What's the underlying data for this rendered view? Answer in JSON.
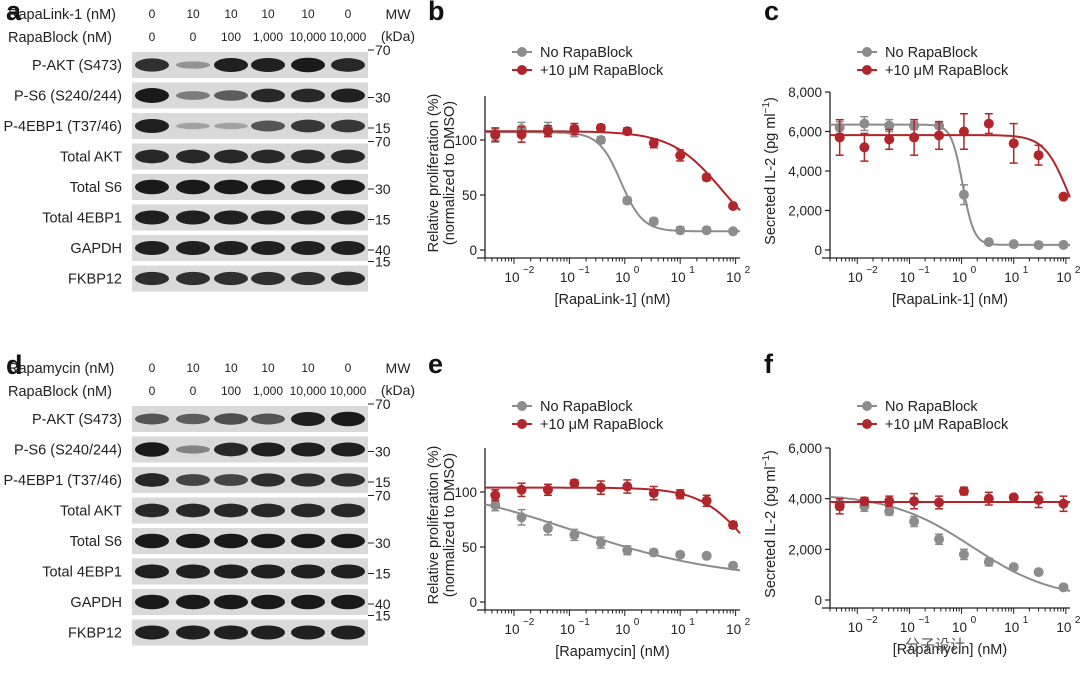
{
  "panels": {
    "a": {
      "letter": "a",
      "conditions": [
        {
          "label": "RapaLink-1 (nM)",
          "values": [
            "0",
            "10",
            "10",
            "10",
            "10",
            "0"
          ]
        },
        {
          "label": "RapaBlock (nM)",
          "values": [
            "0",
            "0",
            "100",
            "1,000",
            "10,000",
            "10,000"
          ]
        }
      ],
      "mw_header": [
        "MW",
        "(kDa)"
      ],
      "blots": [
        {
          "label": "P-AKT (S473)",
          "intensity": [
            0.8,
            0.15,
            0.9,
            0.9,
            0.95,
            0.85
          ],
          "mw": "70"
        },
        {
          "label": "P-S6 (S240/244)",
          "intensity": [
            1.0,
            0.3,
            0.5,
            0.85,
            0.85,
            0.9
          ],
          "mw": "30"
        },
        {
          "label": "P-4EBP1 (T37/46)",
          "intensity": [
            0.9,
            0.05,
            0.05,
            0.55,
            0.75,
            0.75
          ],
          "mw": "15"
        },
        {
          "label": "Total AKT",
          "intensity": [
            0.85,
            0.85,
            0.85,
            0.85,
            0.85,
            0.85
          ],
          "mw": "70"
        },
        {
          "label": "Total S6",
          "intensity": [
            0.95,
            0.95,
            0.95,
            0.95,
            0.95,
            0.95
          ],
          "mw": "30"
        },
        {
          "label": "Total 4EBP1",
          "intensity": [
            0.9,
            0.9,
            0.9,
            0.9,
            0.9,
            0.9
          ],
          "mw": "15"
        },
        {
          "label": "GAPDH",
          "intensity": [
            0.9,
            0.9,
            0.9,
            0.9,
            0.9,
            0.9
          ],
          "mw": "40"
        },
        {
          "label": "FKBP12",
          "intensity": [
            0.8,
            0.8,
            0.8,
            0.8,
            0.8,
            0.85
          ],
          "mw": "15"
        }
      ]
    },
    "d": {
      "letter": "d",
      "conditions": [
        {
          "label": "Rapamycin (nM)",
          "values": [
            "0",
            "10",
            "10",
            "10",
            "10",
            "0"
          ]
        },
        {
          "label": "RapaBlock (nM)",
          "values": [
            "0",
            "0",
            "100",
            "1,000",
            "10,000",
            "10,000"
          ]
        }
      ],
      "mw_header": [
        "MW",
        "(kDa)"
      ],
      "blots": [
        {
          "label": "P-AKT (S473)",
          "intensity": [
            0.55,
            0.5,
            0.6,
            0.55,
            0.9,
            0.95
          ],
          "mw": "70"
        },
        {
          "label": "P-S6 (S240/244)",
          "intensity": [
            0.95,
            0.25,
            0.85,
            0.9,
            0.9,
            0.9
          ],
          "mw": "30"
        },
        {
          "label": "P-4EBP1 (T37/46)",
          "intensity": [
            0.85,
            0.65,
            0.65,
            0.8,
            0.8,
            0.8
          ],
          "mw": "15"
        },
        {
          "label": "Total AKT",
          "intensity": [
            0.85,
            0.85,
            0.85,
            0.85,
            0.85,
            0.85
          ],
          "mw": "70"
        },
        {
          "label": "Total S6",
          "intensity": [
            0.95,
            0.95,
            0.95,
            0.95,
            0.95,
            0.95
          ],
          "mw": "30"
        },
        {
          "label": "Total 4EBP1",
          "intensity": [
            0.9,
            0.9,
            0.9,
            0.9,
            0.9,
            0.9
          ],
          "mw": "15"
        },
        {
          "label": "GAPDH",
          "intensity": [
            0.95,
            0.95,
            0.95,
            0.95,
            0.95,
            0.95
          ],
          "mw": "40"
        },
        {
          "label": "FKBP12",
          "intensity": [
            0.9,
            0.9,
            0.9,
            0.9,
            0.9,
            0.9
          ],
          "mw": "15"
        }
      ]
    }
  },
  "colors": {
    "grey": "#8c8c8c",
    "red": "#b0262a",
    "blot_bg": "#d9d9d9",
    "band": "#1a1a1a"
  },
  "watermark": "分子设计",
  "chart_data": [
    {
      "letter": "b",
      "type": "scatter",
      "ylabel": [
        "Relative proliferation (%)",
        "(normalized to DMSO)"
      ],
      "xlabel": "[RapaLink-1] (nM)",
      "xscale": "log",
      "xlim": [
        0.003,
        120
      ],
      "ylim": [
        0,
        140
      ],
      "xticks": [
        0.01,
        0.1,
        1,
        10,
        100
      ],
      "xtick_labels": [
        [
          "10",
          "−2"
        ],
        [
          "10",
          "−1"
        ],
        [
          "10",
          "0"
        ],
        [
          "10",
          "1"
        ],
        [
          "10",
          "2"
        ]
      ],
      "yticks": [
        0,
        50,
        100
      ],
      "ytick_labels": [
        "0",
        "50",
        "100"
      ],
      "series": [
        {
          "name": "No RapaBlock",
          "color": "grey",
          "x": [
            0.0046,
            0.0137,
            0.041,
            0.123,
            0.37,
            1.11,
            3.33,
            10,
            30,
            90
          ],
          "y": [
            104,
            110,
            110,
            108,
            100,
            45,
            26,
            18,
            18,
            17
          ],
          "err": [
            6,
            6,
            6,
            5,
            3,
            3,
            3,
            3,
            2,
            2
          ],
          "fit": {
            "top": 107,
            "bottom": 17,
            "ec50": 0.85,
            "hill": 2.2
          }
        },
        {
          "name": "+10 μM RapaBlock",
          "color": "red",
          "x": [
            0.0046,
            0.0137,
            0.041,
            0.123,
            0.37,
            1.11,
            3.33,
            10,
            30,
            90
          ],
          "y": [
            105,
            105,
            108,
            110,
            111,
            108,
            97,
            86,
            66,
            40
          ],
          "err": [
            6,
            7,
            5,
            5,
            3,
            3,
            4,
            5,
            3,
            2
          ],
          "fit": {
            "top": 108,
            "bottom": 0,
            "ec50": 58,
            "hill": 0.95
          }
        }
      ]
    },
    {
      "letter": "c",
      "type": "scatter",
      "ylabel": [
        "Secreted IL-2 (pg ml",
        "−1",
        ")"
      ],
      "xlabel": "[RapaLink-1] (nM)",
      "xscale": "log",
      "xlim": [
        0.003,
        120
      ],
      "ylim": [
        0,
        8000
      ],
      "xticks": [
        0.01,
        0.1,
        1,
        10,
        100
      ],
      "xtick_labels": [
        [
          "10",
          "−2"
        ],
        [
          "10",
          "−1"
        ],
        [
          "10",
          "0"
        ],
        [
          "10",
          "1"
        ],
        [
          "10",
          "2"
        ]
      ],
      "yticks": [
        0,
        2000,
        4000,
        6000,
        8000
      ],
      "ytick_labels": [
        "0",
        "2,000",
        "4,000",
        "6,000",
        "8,000"
      ],
      "series": [
        {
          "name": "No RapaBlock",
          "color": "grey",
          "x": [
            0.0046,
            0.0137,
            0.041,
            0.123,
            0.37,
            1.11,
            3.33,
            10,
            30,
            90
          ],
          "y": [
            6200,
            6400,
            6300,
            6300,
            6300,
            2800,
            400,
            300,
            250,
            260
          ],
          "err": [
            300,
            350,
            300,
            200,
            150,
            500,
            100,
            80,
            80,
            80
          ],
          "fit": {
            "top": 6350,
            "bottom": 260,
            "ec50": 1.05,
            "hill": 4
          }
        },
        {
          "name": "+10 μM RapaBlock",
          "color": "red",
          "x": [
            0.0046,
            0.0137,
            0.041,
            0.123,
            0.37,
            1.11,
            3.33,
            10,
            30,
            90
          ],
          "y": [
            5700,
            5200,
            5600,
            5700,
            5800,
            6000,
            6400,
            5400,
            4800,
            2700
          ],
          "err": [
            900,
            700,
            500,
            900,
            700,
            900,
            500,
            1000,
            500,
            100
          ],
          "fit": {
            "top": 5820,
            "bottom": 0,
            "ec50": 110,
            "hill": 1.9
          }
        }
      ]
    },
    {
      "letter": "e",
      "type": "scatter",
      "ylabel": [
        "Relative proliferation (%)",
        "(normalized to DMSO)"
      ],
      "xlabel": "[Rapamycin] (nM)",
      "xscale": "log",
      "xlim": [
        0.003,
        120
      ],
      "ylim": [
        0,
        140
      ],
      "xticks": [
        0.01,
        0.1,
        1,
        10,
        100
      ],
      "xtick_labels": [
        [
          "10",
          "−2"
        ],
        [
          "10",
          "−1"
        ],
        [
          "10",
          "0"
        ],
        [
          "10",
          "1"
        ],
        [
          "10",
          "2"
        ]
      ],
      "yticks": [
        0,
        50,
        100
      ],
      "ytick_labels": [
        "0",
        "50",
        "100"
      ],
      "series": [
        {
          "name": "No RapaBlock",
          "color": "grey",
          "x": [
            0.0046,
            0.0137,
            0.041,
            0.123,
            0.37,
            1.11,
            3.33,
            10,
            30,
            90
          ],
          "y": [
            88,
            77,
            67,
            61,
            54,
            47,
            45,
            43,
            42,
            33
          ],
          "err": [
            5,
            7,
            6,
            5,
            5,
            4,
            3,
            2,
            2,
            2
          ],
          "fit": {
            "top": 110,
            "bottom": 20,
            "ec50": 0.12,
            "hill": 0.32
          }
        },
        {
          "name": "+10 μM RapaBlock",
          "color": "red",
          "x": [
            0.0046,
            0.0137,
            0.041,
            0.123,
            0.37,
            1.11,
            3.33,
            10,
            30,
            90
          ],
          "y": [
            97,
            102,
            102,
            108,
            104,
            105,
            99,
            98,
            92,
            70
          ],
          "err": [
            5,
            6,
            5,
            3,
            6,
            6,
            6,
            4,
            5,
            3
          ],
          "fit": {
            "top": 104,
            "bottom": 0,
            "ec50": 180,
            "hill": 1.0
          }
        }
      ]
    },
    {
      "letter": "f",
      "type": "scatter",
      "ylabel": [
        "Secreted IL-2 (pg ml",
        "−1",
        ")"
      ],
      "xlabel": "[Rapamycin] (nM)",
      "xscale": "log",
      "xlim": [
        0.003,
        120
      ],
      "ylim": [
        0,
        6000
      ],
      "xticks": [
        0.01,
        0.1,
        1,
        10,
        100
      ],
      "xtick_labels": [
        [
          "10",
          "−2"
        ],
        [
          "10",
          "−1"
        ],
        [
          "10",
          "0"
        ],
        [
          "10",
          "1"
        ],
        [
          "10",
          "2"
        ]
      ],
      "yticks": [
        0,
        2000,
        4000,
        6000
      ],
      "ytick_labels": [
        "0",
        "2,000",
        "4,000",
        "6,000"
      ],
      "series": [
        {
          "name": "No RapaBlock",
          "color": "grey",
          "x": [
            0.0046,
            0.0137,
            0.041,
            0.123,
            0.37,
            1.11,
            3.33,
            10,
            30,
            90
          ],
          "y": [
            3800,
            3700,
            3500,
            3100,
            2400,
            1800,
            1500,
            1300,
            1100,
            500
          ],
          "err": [
            250,
            200,
            150,
            200,
            200,
            200,
            150,
            100,
            100,
            80
          ],
          "fit": {
            "top": 4200,
            "bottom": 0,
            "ec50": 1.6,
            "hill": 0.55
          }
        },
        {
          "name": "+10 μM RapaBlock",
          "color": "red",
          "x": [
            0.0046,
            0.0137,
            0.041,
            0.123,
            0.37,
            1.11,
            3.33,
            10,
            30,
            90
          ],
          "y": [
            3700,
            3900,
            3900,
            3900,
            3850,
            4300,
            4000,
            4050,
            3950,
            3800
          ],
          "err": [
            300,
            150,
            200,
            300,
            250,
            150,
            250,
            100,
            300,
            300
          ],
          "fit": {
            "top": 3870,
            "bottom": 3870,
            "ec50": 1,
            "hill": 1
          }
        }
      ]
    }
  ]
}
